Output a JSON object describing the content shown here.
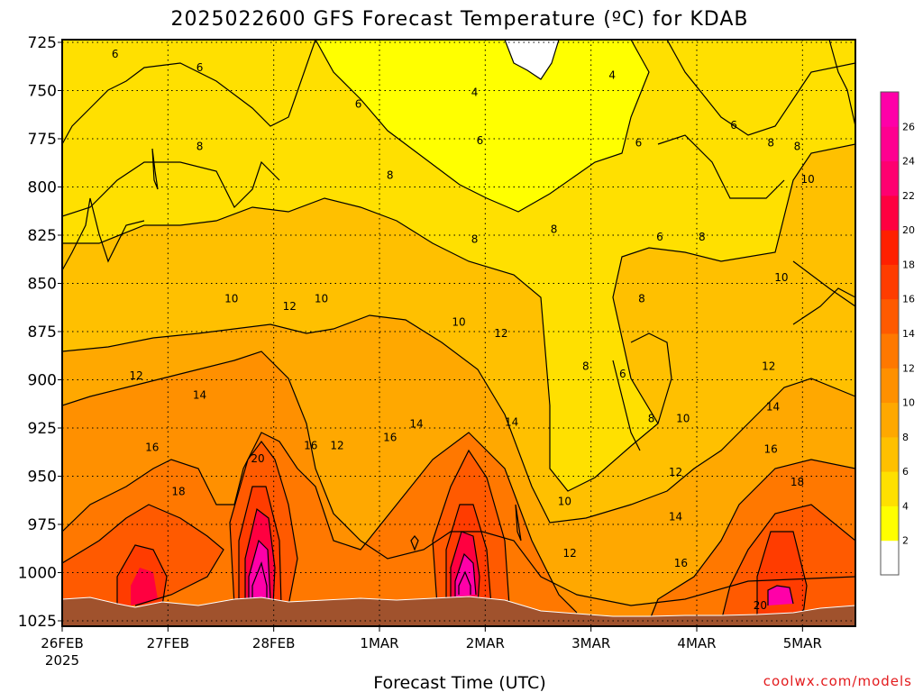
{
  "chart_data": {
    "type": "heatmap",
    "title": "2025022600 GFS Forecast Temperature (ºC) for KDAB",
    "xlabel": "Forecast Time (UTC)",
    "ylabel": "",
    "credit": "coolwx.com/models",
    "y_ticks": [
      "725",
      "750",
      "775",
      "800",
      "825",
      "850",
      "875",
      "900",
      "925",
      "950",
      "975",
      "1000",
      "1025"
    ],
    "ylim": [
      725,
      1025
    ],
    "y_axis_inverted": true,
    "x_ticks": [
      {
        "label": "26FEB",
        "sublabel": "2025",
        "day": 0
      },
      {
        "label": "27FEB",
        "sublabel": "",
        "day": 1
      },
      {
        "label": "28FEB",
        "sublabel": "",
        "day": 2
      },
      {
        "label": "1MAR",
        "sublabel": "",
        "day": 3
      },
      {
        "label": "2MAR",
        "sublabel": "",
        "day": 4
      },
      {
        "label": "3MAR",
        "sublabel": "",
        "day": 5
      },
      {
        "label": "4MAR",
        "sublabel": "",
        "day": 6
      },
      {
        "label": "5MAR",
        "sublabel": "",
        "day": 7
      }
    ],
    "xlim_days": [
      0,
      7.5
    ],
    "grid": true,
    "colorbar": {
      "levels": [
        2,
        4,
        6,
        8,
        10,
        12,
        14,
        16,
        18,
        20,
        22,
        24,
        26
      ],
      "colors": [
        "#ffffff",
        "#ffff00",
        "#ffe000",
        "#ffc000",
        "#ffa800",
        "#ff9000",
        "#ff7800",
        "#ff5a00",
        "#ff3c00",
        "#ff2000",
        "#ff0040",
        "#ff0070",
        "#ff0090",
        "#ff00a8"
      ],
      "placement": "right"
    },
    "contour_labels": [
      {
        "text": "6",
        "day": 0.5,
        "p": 731
      },
      {
        "text": "6",
        "day": 1.3,
        "p": 738
      },
      {
        "text": "6",
        "day": 2.8,
        "p": 757
      },
      {
        "text": "4",
        "day": 3.9,
        "p": 751
      },
      {
        "text": "4",
        "day": 5.2,
        "p": 742
      },
      {
        "text": "6",
        "day": 3.95,
        "p": 776
      },
      {
        "text": "6",
        "day": 5.45,
        "p": 777
      },
      {
        "text": "6",
        "day": 6.35,
        "p": 768
      },
      {
        "text": "8",
        "day": 1.3,
        "p": 779
      },
      {
        "text": "8",
        "day": 3.1,
        "p": 794
      },
      {
        "text": "8",
        "day": 6.7,
        "p": 777
      },
      {
        "text": "8",
        "day": 6.95,
        "p": 779
      },
      {
        "text": "10",
        "day": 7.05,
        "p": 796
      },
      {
        "text": "8",
        "day": 3.9,
        "p": 827
      },
      {
        "text": "8",
        "day": 4.65,
        "p": 822
      },
      {
        "text": "6",
        "day": 5.65,
        "p": 826
      },
      {
        "text": "8",
        "day": 6.05,
        "p": 826
      },
      {
        "text": "10",
        "day": 1.6,
        "p": 858
      },
      {
        "text": "12",
        "day": 2.15,
        "p": 862
      },
      {
        "text": "10",
        "day": 2.45,
        "p": 858
      },
      {
        "text": "10",
        "day": 3.75,
        "p": 870
      },
      {
        "text": "8",
        "day": 5.48,
        "p": 858
      },
      {
        "text": "10",
        "day": 6.8,
        "p": 847
      },
      {
        "text": "12",
        "day": 4.15,
        "p": 876
      },
      {
        "text": "12",
        "day": 0.7,
        "p": 898
      },
      {
        "text": "14",
        "day": 1.3,
        "p": 908
      },
      {
        "text": "8",
        "day": 4.95,
        "p": 893
      },
      {
        "text": "6",
        "day": 5.3,
        "p": 897
      },
      {
        "text": "12",
        "day": 6.68,
        "p": 893
      },
      {
        "text": "14",
        "day": 3.35,
        "p": 923
      },
      {
        "text": "14",
        "day": 4.25,
        "p": 922
      },
      {
        "text": "8",
        "day": 5.57,
        "p": 920
      },
      {
        "text": "10",
        "day": 5.87,
        "p": 920
      },
      {
        "text": "14",
        "day": 6.72,
        "p": 914
      },
      {
        "text": "16",
        "day": 0.85,
        "p": 935
      },
      {
        "text": "16",
        "day": 2.35,
        "p": 934
      },
      {
        "text": "12",
        "day": 2.6,
        "p": 934
      },
      {
        "text": "16",
        "day": 3.1,
        "p": 930
      },
      {
        "text": "20",
        "day": 1.85,
        "p": 941
      },
      {
        "text": "16",
        "day": 6.7,
        "p": 936
      },
      {
        "text": "12",
        "day": 5.8,
        "p": 948
      },
      {
        "text": "18",
        "day": 6.95,
        "p": 953
      },
      {
        "text": "18",
        "day": 1.1,
        "p": 958
      },
      {
        "text": "10",
        "day": 4.75,
        "p": 963
      },
      {
        "text": "14",
        "day": 5.8,
        "p": 971
      },
      {
        "text": "12",
        "day": 4.8,
        "p": 990
      },
      {
        "text": "16",
        "day": 5.85,
        "p": 995
      },
      {
        "text": "20",
        "day": 6.6,
        "p": 1017
      }
    ]
  }
}
